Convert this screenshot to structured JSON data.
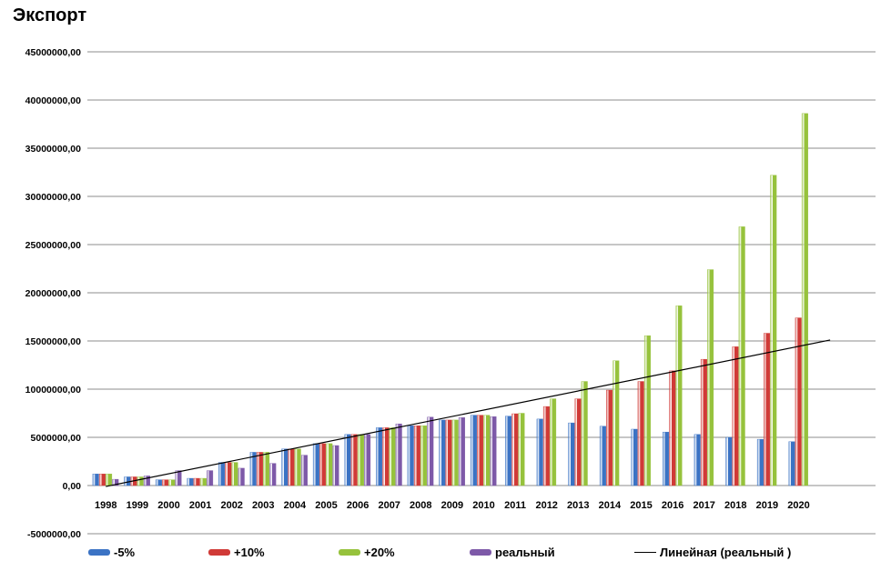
{
  "chart_data": {
    "type": "bar",
    "title": "Экспорт",
    "xlabel": "",
    "ylabel": "",
    "ylim": [
      -5000000,
      45000000
    ],
    "y_ticks": [
      "45000000,00",
      "40000000,00",
      "35000000,00",
      "30000000,00",
      "25000000,00",
      "20000000,00",
      "15000000,00",
      "10000000,00",
      "5000000,00",
      "0,00",
      "-5000000,00"
    ],
    "y_tick_values": [
      45000000,
      40000000,
      35000000,
      30000000,
      25000000,
      20000000,
      15000000,
      10000000,
      5000000,
      0,
      -5000000
    ],
    "grid": true,
    "legend_position": "bottom",
    "categories": [
      "1998",
      "1999",
      "2000",
      "2001",
      "2002",
      "2003",
      "2004",
      "2005",
      "2006",
      "2007",
      "2008",
      "2009",
      "2010",
      "2011",
      "2012",
      "2013",
      "2014",
      "2015",
      "2016",
      "2017",
      "2018",
      "2019",
      "2020"
    ],
    "series": [
      {
        "name": "-5%",
        "color": "#3b73c4",
        "values": [
          1200000,
          900000,
          600000,
          750000,
          2400000,
          3450000,
          3800000,
          4350000,
          5300000,
          6000000,
          6200000,
          6800000,
          7300000,
          7200000,
          6900000,
          6500000,
          6150000,
          5850000,
          5550000,
          5300000,
          5000000,
          4800000,
          4550000
        ]
      },
      {
        "name": "+10%",
        "color": "#d03a37",
        "values": [
          1200000,
          900000,
          600000,
          750000,
          2400000,
          3450000,
          3800000,
          4350000,
          5300000,
          6000000,
          6200000,
          6800000,
          7300000,
          7450000,
          8200000,
          9000000,
          9900000,
          10800000,
          11900000,
          13100000,
          14400000,
          15800000,
          17400000
        ]
      },
      {
        "name": "+20%",
        "color": "#96c23c",
        "values": [
          1200000,
          900000,
          600000,
          750000,
          2400000,
          3450000,
          3800000,
          4350000,
          5300000,
          6000000,
          6200000,
          6800000,
          7300000,
          7500000,
          9000000,
          10800000,
          12950000,
          15550000,
          18650000,
          22400000,
          26850000,
          32200000,
          38600000
        ]
      },
      {
        "name": "реальный",
        "color": "#7d59a8",
        "values": [
          650000,
          1000000,
          1550000,
          1550000,
          1800000,
          2300000,
          3150000,
          4150000,
          5300000,
          6400000,
          7100000,
          7050000,
          7150000,
          null,
          null,
          null,
          null,
          null,
          null,
          null,
          null,
          null,
          null
        ]
      }
    ],
    "trendline": {
      "name": "Линейная (реальный )",
      "color": "#000000",
      "x_start": "1998",
      "x_end": "2021",
      "y_start": -100000,
      "y_end": 15100000
    }
  }
}
